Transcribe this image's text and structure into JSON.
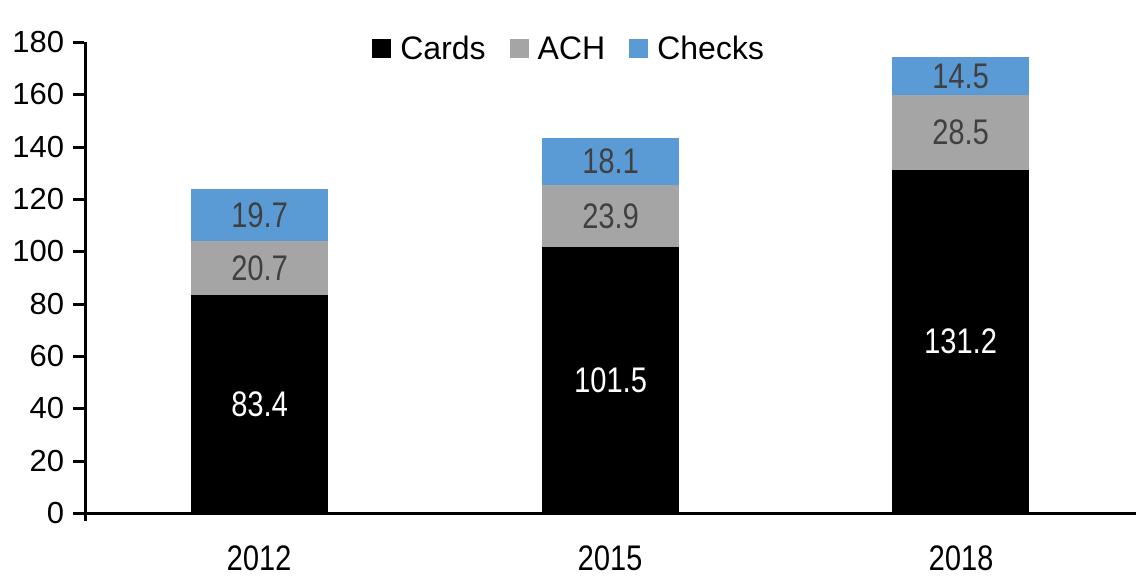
{
  "chart_data": {
    "type": "bar",
    "stacked": true,
    "title": "",
    "categories": [
      "2012",
      "2015",
      "2018"
    ],
    "series": [
      {
        "name": "Cards",
        "color": "#000000",
        "label_color": "#ffffff",
        "values": [
          83.4,
          101.5,
          131.2
        ]
      },
      {
        "name": "ACH",
        "color": "#a5a5a5",
        "label_color": "#404040",
        "values": [
          20.7,
          23.9,
          28.5
        ]
      },
      {
        "name": "Checks",
        "color": "#5b9bd5",
        "label_color": "#404040",
        "values": [
          19.7,
          18.1,
          14.5
        ]
      }
    ],
    "totals": [
      123.8,
      143.5,
      174.2
    ],
    "ylim": [
      0,
      180
    ],
    "yticks": [
      0,
      20,
      40,
      60,
      80,
      100,
      120,
      140,
      160,
      180
    ],
    "grid": false,
    "legend_position": "top",
    "axis_color": "#000000",
    "background_color": "#ffffff"
  }
}
